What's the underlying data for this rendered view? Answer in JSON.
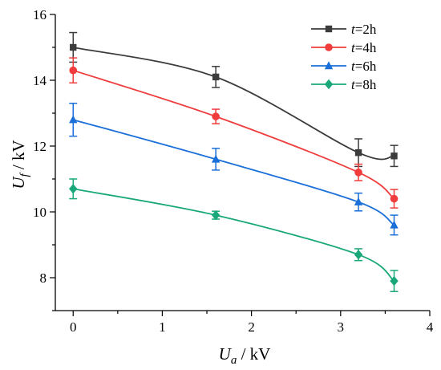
{
  "chart_data": {
    "type": "line",
    "x": [
      0,
      1.6,
      3.2,
      3.6
    ],
    "series": [
      {
        "name_var": "t",
        "name_rest": "=2h",
        "values": [
          15.0,
          14.1,
          11.8,
          11.7
        ],
        "errors": [
          0.45,
          0.32,
          0.42,
          0.32
        ],
        "color": "#3c3c3c",
        "marker": "square"
      },
      {
        "name_var": "t",
        "name_rest": "=4h",
        "values": [
          14.3,
          12.9,
          11.2,
          10.4
        ],
        "errors": [
          0.38,
          0.22,
          0.25,
          0.28
        ],
        "color": "#f03c3c",
        "marker": "circle"
      },
      {
        "name_var": "t",
        "name_rest": "=6h",
        "values": [
          12.8,
          11.6,
          10.3,
          9.6
        ],
        "errors": [
          0.5,
          0.33,
          0.27,
          0.3
        ],
        "color": "#1a6fd8",
        "marker": "triangle"
      },
      {
        "name_var": "t",
        "name_rest": "=8h",
        "values": [
          10.7,
          9.9,
          8.7,
          7.9
        ],
        "errors": [
          0.3,
          0.12,
          0.18,
          0.32
        ],
        "color": "#1aa87a",
        "marker": "diamond"
      }
    ],
    "xlim": [
      -0.2,
      4
    ],
    "ylim": [
      7.0,
      16.0
    ],
    "xticks": [
      "0",
      "1",
      "2",
      "3",
      "4"
    ],
    "yticks": [
      "8",
      "10",
      "12",
      "14",
      "16"
    ],
    "xlabel": {
      "main": "U",
      "sub": "a",
      "unit": " / kV"
    },
    "ylabel": {
      "main": "U",
      "sub": "f",
      "unit": " / kV"
    },
    "legend_position": "top-right",
    "grid": false
  }
}
